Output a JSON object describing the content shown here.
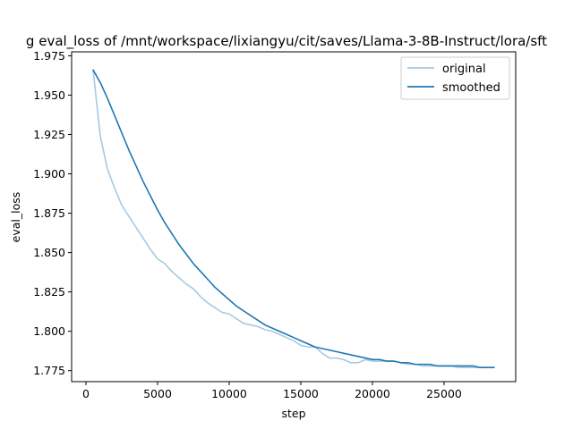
{
  "chart_data": {
    "type": "line",
    "title": "g eval_loss of /mnt/workspace/lixiangyu/cit/saves/Llama-3-8B-Instruct/lora/sft",
    "xlabel": "step",
    "ylabel": "eval_loss",
    "xlim": [
      -1000,
      30000
    ],
    "ylim": [
      1.768,
      1.9775
    ],
    "xticks": [
      0,
      5000,
      10000,
      15000,
      20000,
      25000
    ],
    "yticks": [
      1.775,
      1.8,
      1.825,
      1.85,
      1.875,
      1.9,
      1.925,
      1.95,
      1.975
    ],
    "xtick_labels": [
      "0",
      "5000",
      "10000",
      "15000",
      "20000",
      "25000"
    ],
    "ytick_labels": [
      "1.775",
      "1.800",
      "1.825",
      "1.850",
      "1.875",
      "1.900",
      "1.925",
      "1.950",
      "1.975"
    ],
    "legend_position": "top-right",
    "grid": false,
    "series": [
      {
        "name": "original",
        "color": "#a6cae3",
        "x": [
          500,
          1000,
          1500,
          2000,
          2500,
          3000,
          3500,
          4000,
          4500,
          5000,
          5500,
          6000,
          6500,
          7000,
          7500,
          8000,
          8500,
          9000,
          9500,
          10000,
          10500,
          11000,
          11500,
          12000,
          12500,
          13000,
          13500,
          14000,
          14500,
          15000,
          15500,
          16000,
          16500,
          17000,
          17500,
          18000,
          18500,
          19000,
          19500,
          20000,
          20500,
          21000,
          21500,
          22000,
          22500,
          23000,
          23500,
          24000,
          24500,
          25000,
          25500,
          26000,
          26500,
          27000,
          27500,
          28000,
          28500
        ],
        "values": [
          1.966,
          1.924,
          1.903,
          1.891,
          1.88,
          1.873,
          1.866,
          1.859,
          1.852,
          1.846,
          1.843,
          1.838,
          1.834,
          1.83,
          1.827,
          1.822,
          1.818,
          1.815,
          1.812,
          1.811,
          1.808,
          1.805,
          1.804,
          1.803,
          1.801,
          1.8,
          1.798,
          1.796,
          1.794,
          1.791,
          1.79,
          1.79,
          1.786,
          1.783,
          1.783,
          1.782,
          1.78,
          1.78,
          1.782,
          1.781,
          1.781,
          1.781,
          1.781,
          1.78,
          1.779,
          1.779,
          1.778,
          1.778,
          1.778,
          1.778,
          1.778,
          1.777,
          1.777,
          1.777,
          1.777,
          1.777,
          1.777
        ]
      },
      {
        "name": "smoothed",
        "color": "#1f77b4",
        "x": [
          500,
          1000,
          1500,
          2000,
          2500,
          3000,
          3500,
          4000,
          4500,
          5000,
          5500,
          6000,
          6500,
          7000,
          7500,
          8000,
          8500,
          9000,
          9500,
          10000,
          10500,
          11000,
          11500,
          12000,
          12500,
          13000,
          13500,
          14000,
          14500,
          15000,
          15500,
          16000,
          16500,
          17000,
          17500,
          18000,
          18500,
          19000,
          19500,
          20000,
          20500,
          21000,
          21500,
          22000,
          22500,
          23000,
          23500,
          24000,
          24500,
          25000,
          25500,
          26000,
          26500,
          27000,
          27500,
          28000,
          28500
        ],
        "values": [
          1.966,
          1.958,
          1.948,
          1.937,
          1.926,
          1.915,
          1.905,
          1.895,
          1.886,
          1.877,
          1.869,
          1.862,
          1.855,
          1.849,
          1.843,
          1.838,
          1.833,
          1.828,
          1.824,
          1.82,
          1.816,
          1.813,
          1.81,
          1.807,
          1.804,
          1.802,
          1.8,
          1.798,
          1.796,
          1.794,
          1.792,
          1.79,
          1.789,
          1.788,
          1.787,
          1.786,
          1.785,
          1.784,
          1.783,
          1.782,
          1.782,
          1.781,
          1.781,
          1.78,
          1.78,
          1.779,
          1.779,
          1.779,
          1.778,
          1.778,
          1.778,
          1.778,
          1.778,
          1.778,
          1.777,
          1.777,
          1.777
        ]
      }
    ]
  }
}
